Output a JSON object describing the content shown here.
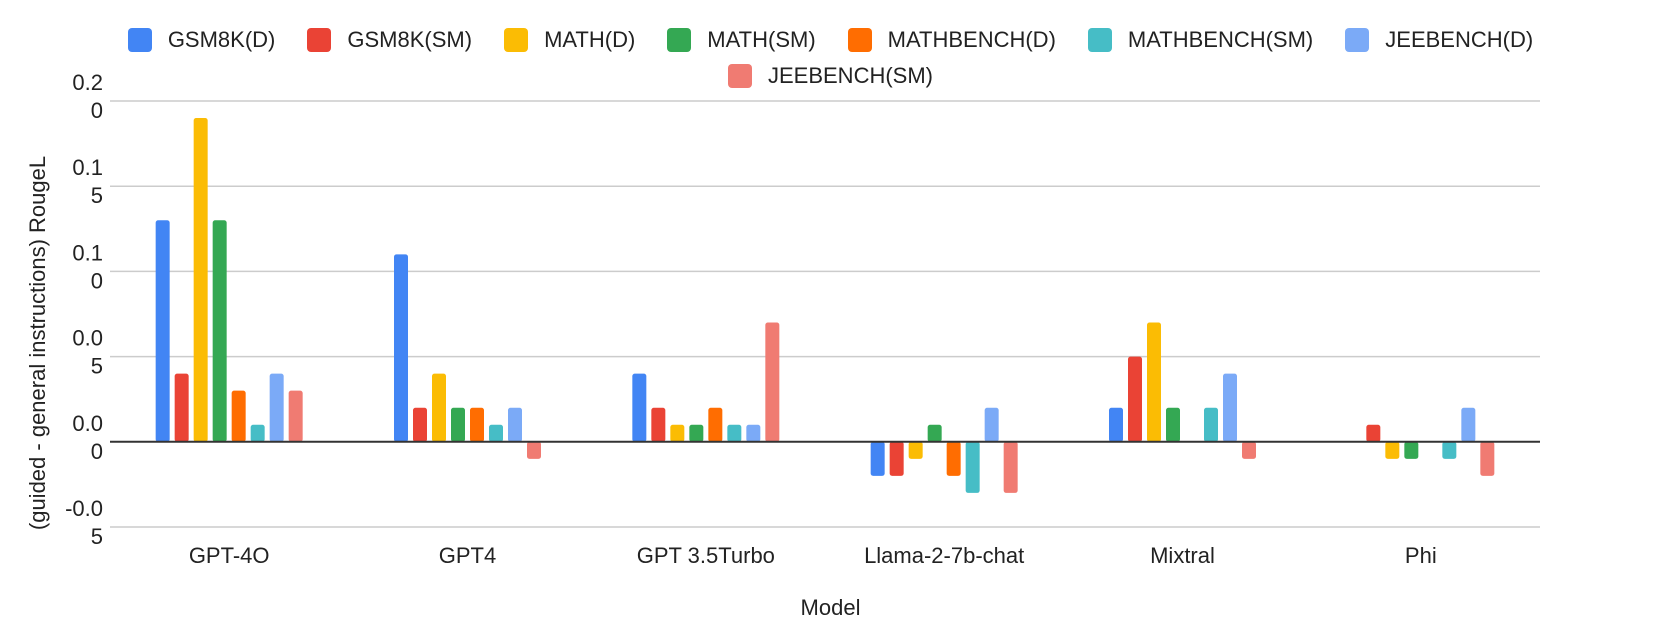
{
  "chart_data": {
    "type": "bar",
    "xlabel": "Model",
    "ylabel": "(guided - general instructions) RougeL",
    "ylim": [
      -0.05,
      0.2
    ],
    "y_ticks": [
      {
        "value": 0.2,
        "lines": [
          "0.2",
          "0"
        ]
      },
      {
        "value": 0.15,
        "lines": [
          "0.1",
          "5"
        ]
      },
      {
        "value": 0.1,
        "lines": [
          "0.1",
          "0"
        ]
      },
      {
        "value": 0.05,
        "lines": [
          "0.0",
          "5"
        ]
      },
      {
        "value": 0.0,
        "lines": [
          "0.0",
          "0"
        ]
      },
      {
        "value": -0.05,
        "lines": [
          "-0.0",
          "5"
        ]
      }
    ],
    "grid": true,
    "legend_position": "top",
    "categories": [
      "GPT-4O",
      "GPT4",
      "GPT 3.5Turbo",
      "Llama-2-7b-chat",
      "Mixtral",
      "Phi"
    ],
    "series": [
      {
        "name": "GSM8K(D)",
        "color": "#4285F4",
        "values": [
          0.13,
          0.11,
          0.04,
          -0.02,
          0.02,
          0.0
        ]
      },
      {
        "name": "GSM8K(SM)",
        "color": "#EA4335",
        "values": [
          0.04,
          0.02,
          0.02,
          -0.02,
          0.05,
          0.01
        ]
      },
      {
        "name": "MATH(D)",
        "color": "#FBBC04",
        "values": [
          0.19,
          0.04,
          0.01,
          -0.01,
          0.07,
          -0.01
        ]
      },
      {
        "name": "MATH(SM)",
        "color": "#34A853",
        "values": [
          0.13,
          0.02,
          0.01,
          0.01,
          0.02,
          -0.01
        ]
      },
      {
        "name": "MATHBENCH(D)",
        "color": "#FF6D01",
        "values": [
          0.03,
          0.02,
          0.02,
          -0.02,
          0.0,
          0.0
        ]
      },
      {
        "name": "MATHBENCH(SM)",
        "color": "#46BDC6",
        "values": [
          0.01,
          0.01,
          0.01,
          -0.03,
          0.02,
          -0.01
        ]
      },
      {
        "name": "JEEBENCH(D)",
        "color": "#7BAAF7",
        "values": [
          0.04,
          0.02,
          0.01,
          0.02,
          0.04,
          0.02
        ]
      },
      {
        "name": "JEEBENCH(SM)",
        "color": "#F07B72",
        "values": [
          0.03,
          -0.01,
          0.07,
          -0.03,
          -0.01,
          -0.02
        ]
      }
    ]
  }
}
